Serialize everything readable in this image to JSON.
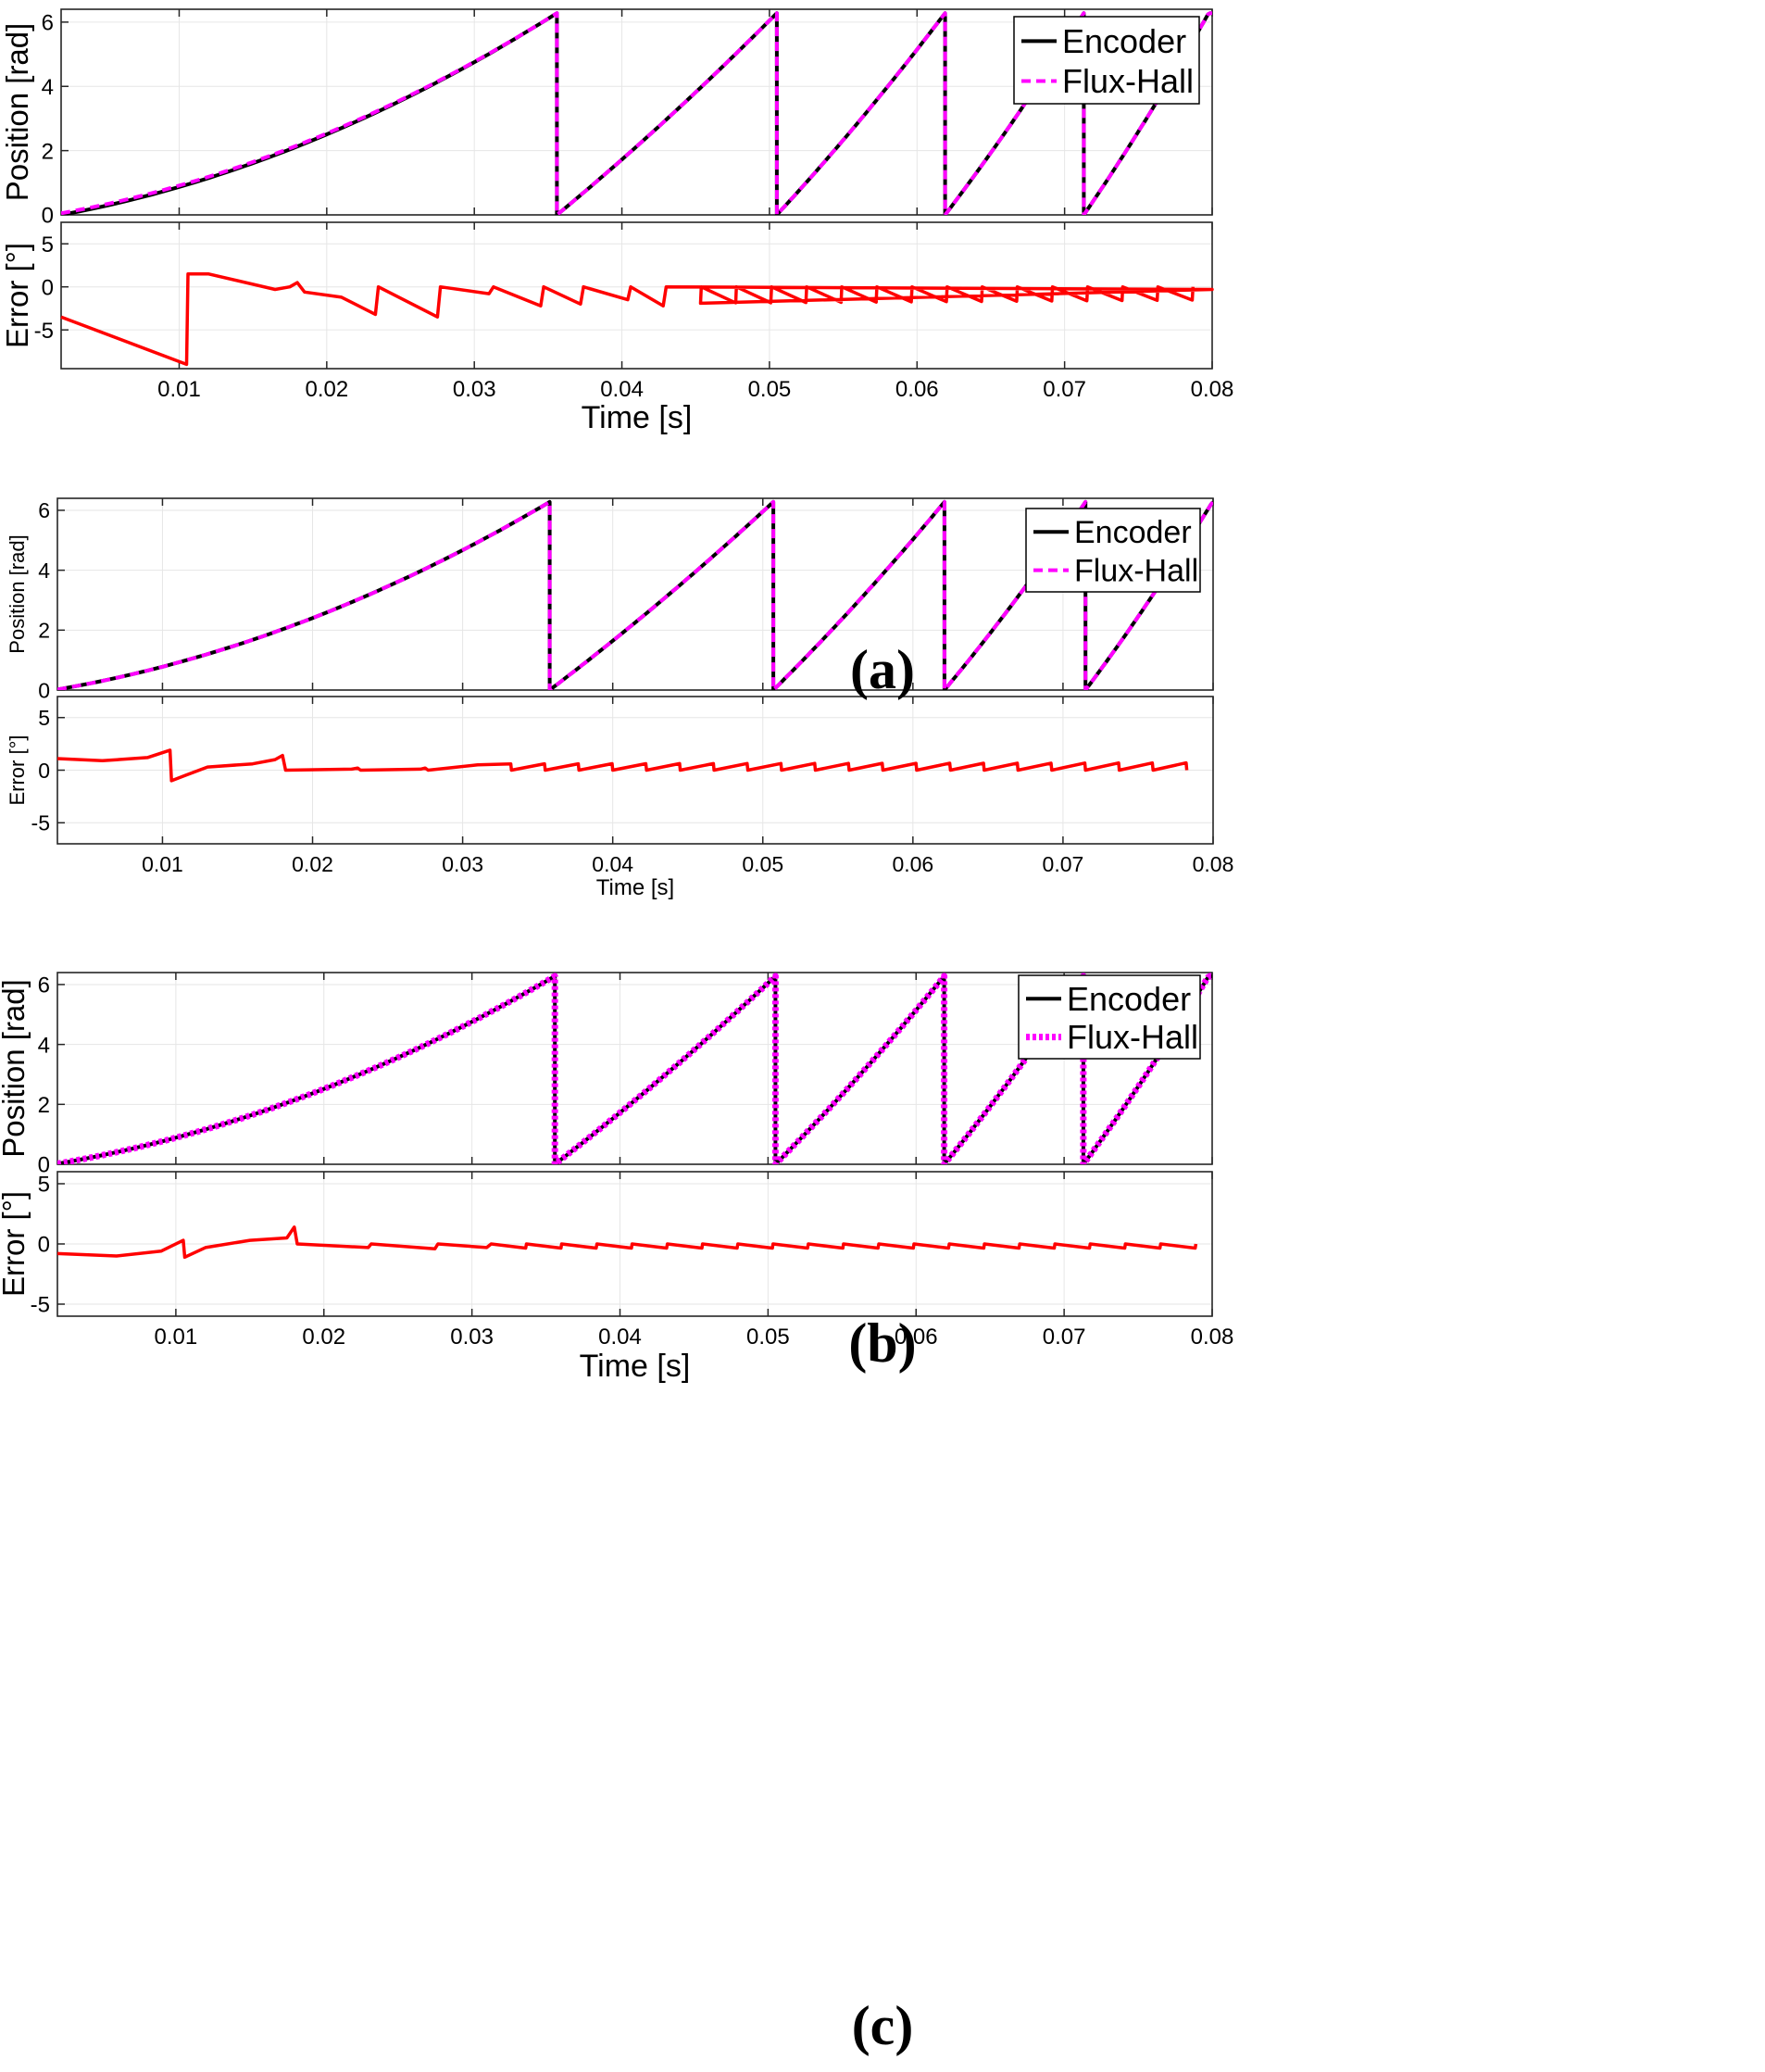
{
  "figure_captions": [
    "(a)",
    "(b)",
    "(c)"
  ],
  "colors": {
    "encoder": "#000000",
    "flux_hall": "#ff00ff",
    "error": "#ff0000",
    "grid": "#e6e6e6",
    "axis": "#262626"
  },
  "chart_data": [
    {
      "panel": "a",
      "type": "line",
      "subplot": "position",
      "title": "",
      "xlabel": "",
      "ylabel": "Position [rad]",
      "xlim": [
        0.002,
        0.08
      ],
      "ylim": [
        0,
        6.4
      ],
      "yticks": [
        0,
        2,
        4,
        6
      ],
      "ytick_labels": [
        "0",
        "2",
        "4",
        "6"
      ],
      "grid": true,
      "legend_placement": "top-right",
      "series": [
        {
          "name": "Encoder",
          "style": "solid",
          "wraps": [
            0.0356,
            0.0505,
            0.0619,
            0.0713
          ],
          "y_at_start": 0.0,
          "y_at_first_wrap": 6.28
        },
        {
          "name": "Flux-Hall",
          "style": "dashed",
          "wraps": [
            0.0356,
            0.0505,
            0.0619,
            0.0713
          ],
          "y_at_start": 0.05,
          "y_at_first_wrap": 6.28
        }
      ]
    },
    {
      "panel": "a",
      "type": "line",
      "subplot": "error",
      "xlabel": "Time [s]",
      "ylabel": "Error [°]",
      "xlim": [
        0.002,
        0.08
      ],
      "ylim": [
        -9.5,
        7.5
      ],
      "yticks": [
        -5,
        0,
        5
      ],
      "ytick_labels": [
        "-5",
        "0",
        "5"
      ],
      "xticks": [
        0.01,
        0.02,
        0.03,
        0.04,
        0.05,
        0.06,
        0.07,
        0.08
      ],
      "xtick_labels": [
        "0.01",
        "0.02",
        "0.03",
        "0.04",
        "0.05",
        "0.06",
        "0.07",
        "0.08"
      ],
      "grid": true,
      "series": [
        {
          "name": "Error",
          "x": [
            0.002,
            0.0105,
            0.0106,
            0.012,
            0.0165,
            0.0175,
            0.018,
            0.0185,
            0.021,
            0.0233,
            0.0235,
            0.0275,
            0.0277,
            0.031,
            0.0313,
            0.0345,
            0.0347,
            0.0372,
            0.0374,
            0.0404,
            0.0406,
            0.0428,
            0.043,
            0.08
          ],
          "y": [
            -3.5,
            -9.0,
            1.5,
            1.5,
            -0.3,
            0.0,
            0.5,
            -0.6,
            -1.2,
            -3.2,
            0.0,
            -3.5,
            0.0,
            -0.8,
            0.0,
            -2.2,
            0.0,
            -2.0,
            0.0,
            -1.5,
            0.0,
            -2.2,
            0.0,
            -0.3
          ],
          "sawtooth_after": {
            "start": 0.043,
            "end": 0.08,
            "period": 0.00238,
            "low": -1.9,
            "low_end": -1.5,
            "high": 0.0
          }
        }
      ]
    },
    {
      "panel": "b",
      "type": "line",
      "subplot": "position",
      "xlabel": "",
      "ylabel": "Position [rad]",
      "xlim": [
        0.003,
        0.08
      ],
      "ylim": [
        0,
        6.4
      ],
      "yticks": [
        0,
        2,
        4,
        6
      ],
      "ytick_labels": [
        "0",
        "2",
        "4",
        "6"
      ],
      "grid": true,
      "legend_placement": "top-right",
      "series": [
        {
          "name": "Encoder",
          "style": "solid",
          "wraps": [
            0.0358,
            0.0507,
            0.0621,
            0.0715
          ],
          "y_at_start": 0.02,
          "y_at_first_wrap": 6.28
        },
        {
          "name": "Flux-Hall",
          "style": "dashed",
          "wraps": [
            0.0358,
            0.0507,
            0.0621,
            0.0715
          ],
          "y_at_start": 0.02,
          "y_at_first_wrap": 6.28
        }
      ]
    },
    {
      "panel": "b",
      "type": "line",
      "subplot": "error",
      "xlabel": "Time [s]",
      "ylabel": "Error [°]",
      "xlim": [
        0.003,
        0.08
      ],
      "ylim": [
        -7,
        7
      ],
      "yticks": [
        -5,
        0,
        5
      ],
      "ytick_labels": [
        "-5",
        "0",
        "5"
      ],
      "xticks": [
        0.01,
        0.02,
        0.03,
        0.04,
        0.05,
        0.06,
        0.07,
        0.08
      ],
      "xtick_labels": [
        "0.01",
        "0.02",
        "0.03",
        "0.04",
        "0.05",
        "0.06",
        "0.07",
        "0.08"
      ],
      "grid": true,
      "series": [
        {
          "name": "Error",
          "x": [
            0.003,
            0.006,
            0.009,
            0.0105,
            0.0106,
            0.0115,
            0.013,
            0.016,
            0.0175,
            0.018,
            0.0182,
            0.0226,
            0.023,
            0.0232,
            0.0272,
            0.0275,
            0.0277,
            0.031
          ],
          "y": [
            1.1,
            0.9,
            1.2,
            1.9,
            -1.0,
            -0.5,
            0.3,
            0.6,
            1.0,
            1.4,
            0.0,
            0.1,
            0.2,
            0.0,
            0.1,
            0.2,
            0.0,
            0.5
          ],
          "sawtooth_after": {
            "start": 0.031,
            "end": 0.08,
            "period": 0.00225,
            "low": 0.0,
            "high": 0.6,
            "high_end": 0.7
          }
        }
      ]
    },
    {
      "panel": "c",
      "type": "line",
      "subplot": "position",
      "xlabel": "",
      "ylabel": "Position [rad]",
      "xlim": [
        0.002,
        0.08
      ],
      "ylim": [
        0,
        6.4
      ],
      "yticks": [
        0,
        2,
        4,
        6
      ],
      "ytick_labels": [
        "0",
        "2",
        "4",
        "6"
      ],
      "grid": true,
      "legend_placement": "top-right",
      "series": [
        {
          "name": "Encoder",
          "style": "solid",
          "wraps": [
            0.0356,
            0.0505,
            0.0619,
            0.0713
          ],
          "y_at_start": 0.02,
          "y_at_first_wrap": 6.28
        },
        {
          "name": "Flux-Hall",
          "style": "dotted",
          "wraps": [
            0.0356,
            0.0505,
            0.0619,
            0.0713
          ],
          "y_at_start": 0.02,
          "y_at_first_wrap": 6.28
        }
      ]
    },
    {
      "panel": "c",
      "type": "line",
      "subplot": "error",
      "xlabel": "Time [s]",
      "ylabel": "Error [°]",
      "xlim": [
        0.002,
        0.08
      ],
      "ylim": [
        -6,
        6
      ],
      "yticks": [
        -5,
        0,
        5
      ],
      "ytick_labels": [
        "-5",
        "0",
        "5"
      ],
      "xticks": [
        0.01,
        0.02,
        0.03,
        0.04,
        0.05,
        0.06,
        0.07,
        0.08
      ],
      "xtick_labels": [
        "0.01",
        "0.02",
        "0.03",
        "0.04",
        "0.05",
        "0.06",
        "0.07",
        "0.08"
      ],
      "grid": true,
      "series": [
        {
          "name": "Error",
          "x": [
            0.002,
            0.006,
            0.009,
            0.0105,
            0.0106,
            0.012,
            0.015,
            0.0175,
            0.018,
            0.0182,
            0.023,
            0.0232,
            0.0275,
            0.0277,
            0.031,
            0.0313
          ],
          "y": [
            -0.8,
            -1.0,
            -0.6,
            0.3,
            -1.1,
            -0.3,
            0.3,
            0.5,
            1.4,
            0.0,
            -0.3,
            0.0,
            -0.4,
            0.0,
            -0.3,
            0.0
          ],
          "sawtooth_after": {
            "start": 0.0313,
            "end": 0.08,
            "period": 0.00238,
            "low": -0.35,
            "high": 0.0
          }
        }
      ]
    }
  ]
}
